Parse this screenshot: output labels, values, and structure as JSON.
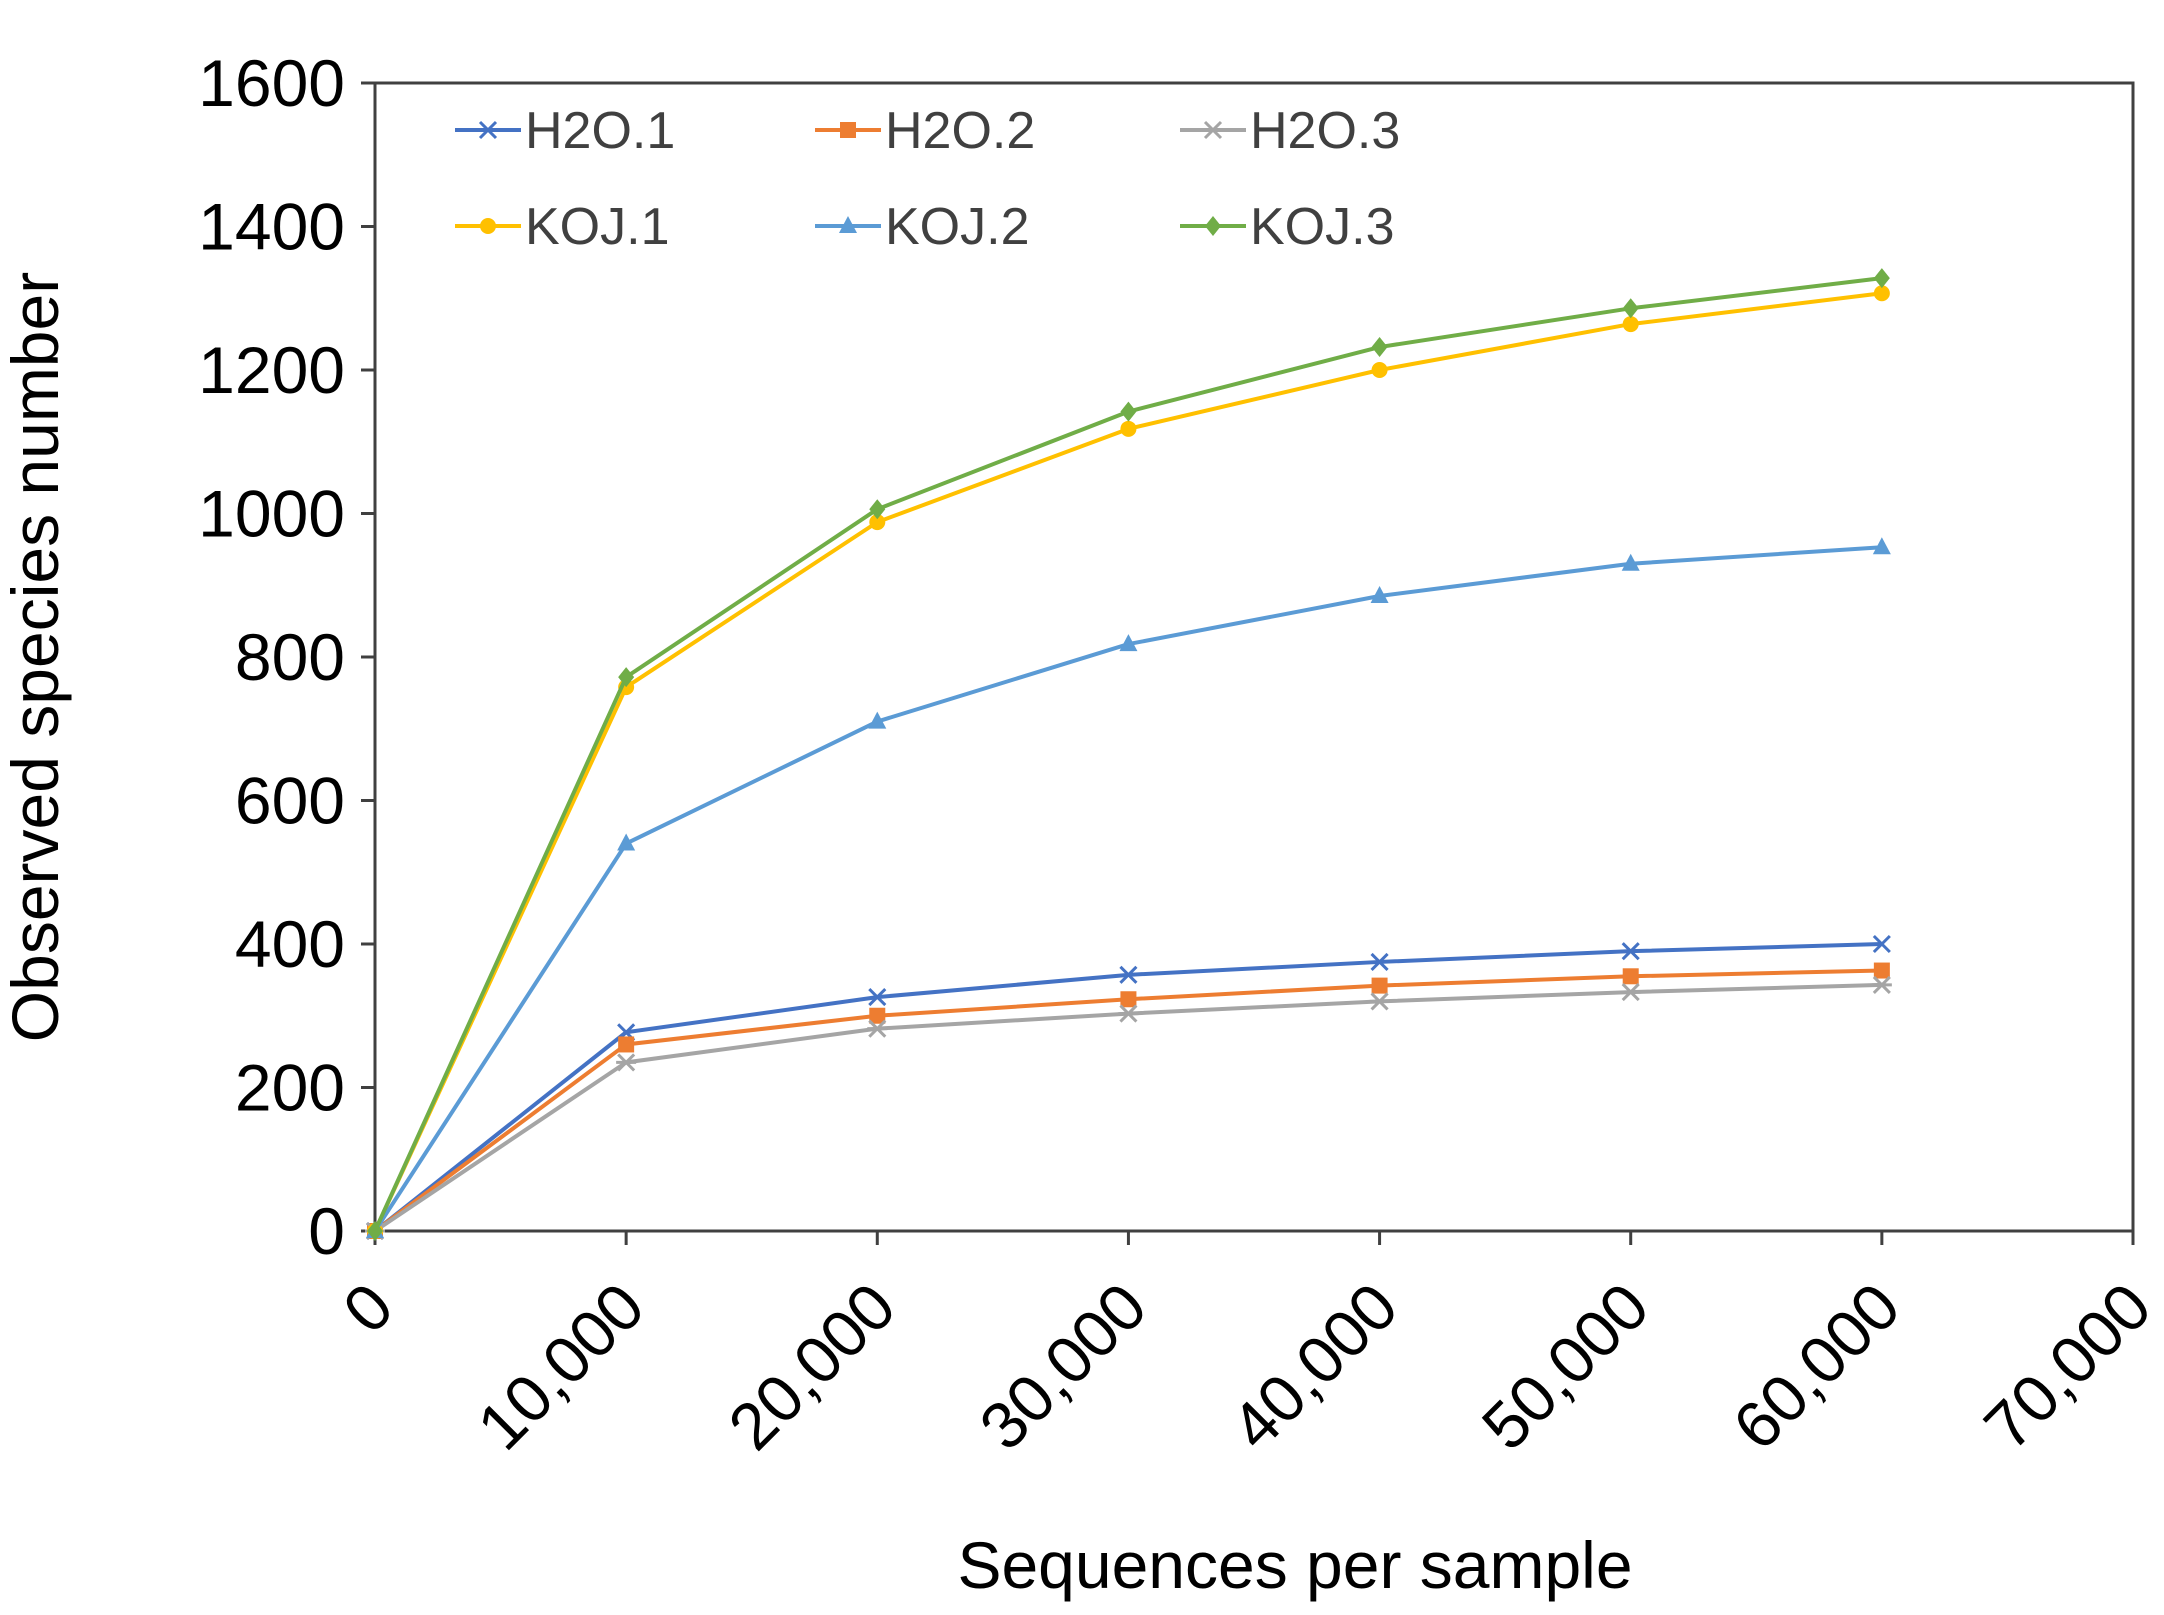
{
  "chart_data": {
    "type": "line",
    "xlabel": "Sequences per sample",
    "ylabel": "Observed species number",
    "xlim": [
      0,
      70000
    ],
    "ylim": [
      0,
      1600
    ],
    "x_ticks": [
      0,
      10000,
      20000,
      30000,
      40000,
      50000,
      60000,
      70000
    ],
    "x_tick_labels": [
      "0",
      "10,000",
      "20,000",
      "30,000",
      "40,000",
      "50,000",
      "60,000",
      "70,000"
    ],
    "y_ticks": [
      0,
      200,
      400,
      600,
      800,
      1000,
      1200,
      1400,
      1600
    ],
    "y_tick_labels": [
      "0",
      "200",
      "400",
      "600",
      "800",
      "1000",
      "1200",
      "1400",
      "1600"
    ],
    "grid": false,
    "legend_position": "top-left inside",
    "x": [
      0,
      10000,
      20000,
      30000,
      40000,
      50000,
      60000
    ],
    "series": [
      {
        "name": "H2O.1",
        "color": "#4472C4",
        "marker": "x",
        "values": [
          0,
          277,
          326,
          357,
          375,
          390,
          400
        ]
      },
      {
        "name": "H2O.2",
        "color": "#ED7D31",
        "marker": "square",
        "values": [
          0,
          260,
          300,
          323,
          342,
          355,
          363
        ]
      },
      {
        "name": "H2O.3",
        "color": "#A5A5A5",
        "marker": "star",
        "values": [
          0,
          235,
          282,
          303,
          320,
          333,
          343
        ]
      },
      {
        "name": "KOJ.1",
        "color": "#FFC000",
        "marker": "circle",
        "values": [
          0,
          758,
          988,
          1118,
          1200,
          1264,
          1307
        ]
      },
      {
        "name": "KOJ.2",
        "color": "#5B9BD5",
        "marker": "triangle",
        "values": [
          0,
          540,
          710,
          818,
          885,
          930,
          953
        ]
      },
      {
        "name": "KOJ.3",
        "color": "#70AD47",
        "marker": "diamond",
        "values": [
          0,
          772,
          1006,
          1142,
          1232,
          1286,
          1328
        ]
      }
    ]
  }
}
